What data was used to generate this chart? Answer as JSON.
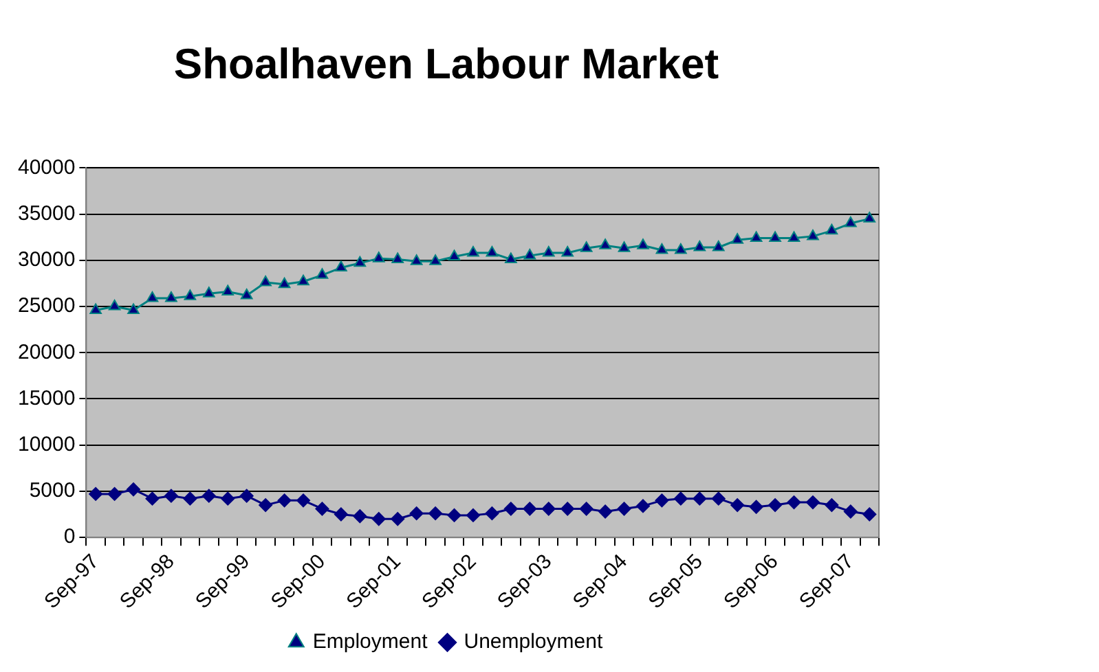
{
  "chart_data": {
    "type": "line",
    "title": "Shoalhaven Labour Market",
    "categories": [
      "Sep-97",
      null,
      null,
      null,
      "Sep-98",
      null,
      null,
      null,
      "Sep-99",
      null,
      null,
      null,
      "Sep-00",
      null,
      null,
      null,
      "Sep-01",
      null,
      null,
      null,
      "Sep-02",
      null,
      null,
      null,
      "Sep-03",
      null,
      null,
      null,
      "Sep-04",
      null,
      null,
      null,
      "Sep-05",
      null,
      null,
      null,
      "Sep-06",
      null,
      null,
      null,
      "Sep-07",
      null
    ],
    "series": [
      {
        "name": "Employment",
        "color": "#008080",
        "marker": "triangle",
        "values": [
          24600,
          25000,
          24600,
          25900,
          25900,
          26100,
          26400,
          26600,
          26200,
          27600,
          27400,
          27700,
          28400,
          29200,
          29700,
          30200,
          30100,
          29900,
          29900,
          30400,
          30800,
          30800,
          30100,
          30500,
          30800,
          30800,
          31300,
          31600,
          31300,
          31600,
          31100,
          31100,
          31400,
          31400,
          32200,
          32400,
          32400,
          32400,
          32600,
          33200,
          34000,
          34500
        ]
      },
      {
        "name": "Unemployment",
        "color": "#000080",
        "marker": "diamond",
        "values": [
          4700,
          4700,
          5200,
          4200,
          4500,
          4200,
          4500,
          4200,
          4500,
          3500,
          4000,
          4000,
          3100,
          2500,
          2300,
          2000,
          2000,
          2600,
          2600,
          2400,
          2400,
          2600,
          3100,
          3100,
          3100,
          3100,
          3100,
          2800,
          3100,
          3400,
          4000,
          4200,
          4200,
          4200,
          3500,
          3300,
          3500,
          3800,
          3800,
          3500,
          2800,
          2500
        ]
      }
    ],
    "ylim": [
      0,
      40000
    ],
    "yticks": [
      0,
      5000,
      10000,
      15000,
      20000,
      25000,
      30000,
      35000,
      40000
    ],
    "grid": "y",
    "legend": "bottom",
    "line_style": "solid"
  }
}
